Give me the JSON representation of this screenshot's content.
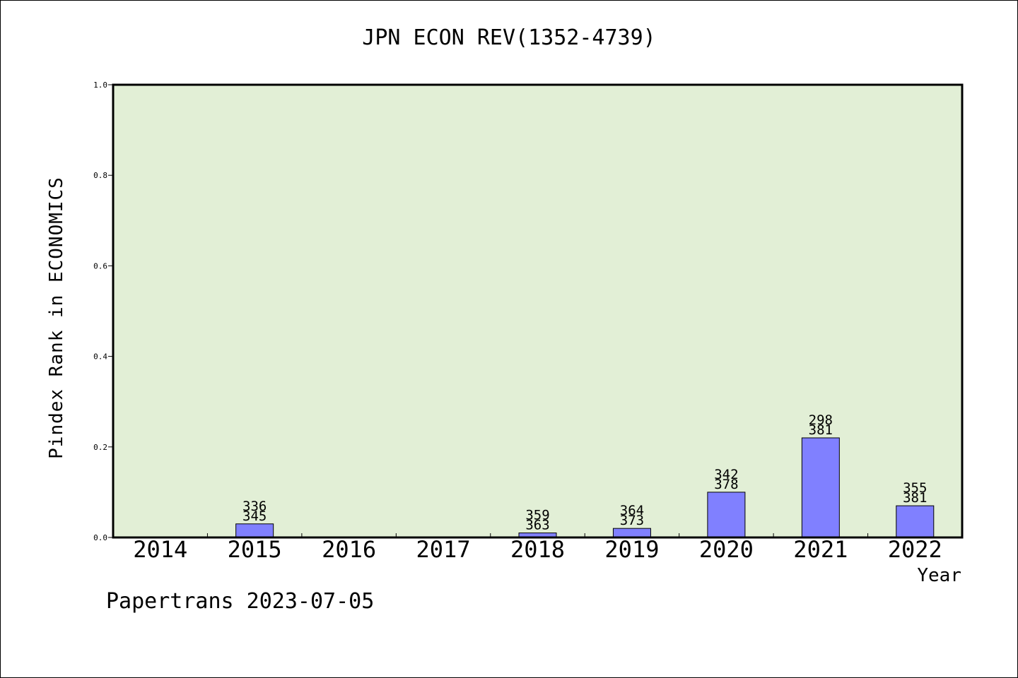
{
  "chart_data": {
    "type": "bar",
    "title": "JPN ECON REV(1352-4739)",
    "xlabel": "Year",
    "ylabel": "Pindex Rank in ECONOMICS",
    "categories": [
      "2014",
      "2015",
      "2016",
      "2017",
      "2018",
      "2019",
      "2020",
      "2021",
      "2022"
    ],
    "values": [
      0,
      0.03,
      0,
      0,
      0.01,
      0.02,
      0.1,
      0.22,
      0.07
    ],
    "bar_labels": [
      null,
      [
        "336",
        "345"
      ],
      null,
      null,
      [
        "359",
        "363"
      ],
      [
        "364",
        "373"
      ],
      [
        "342",
        "378"
      ],
      [
        "298",
        "381"
      ],
      [
        "355",
        "381"
      ]
    ],
    "ylim": [
      0,
      1.0
    ],
    "yticks": [
      "0.0",
      "0.2",
      "0.4",
      "0.6",
      "0.8",
      "1.0"
    ],
    "grid": false,
    "colors": {
      "plot_background": "#e2efd6",
      "bar_fill": "#8080ff",
      "bar_stroke": "#000000"
    }
  },
  "footer": {
    "text": "Papertrans 2023-07-05"
  }
}
